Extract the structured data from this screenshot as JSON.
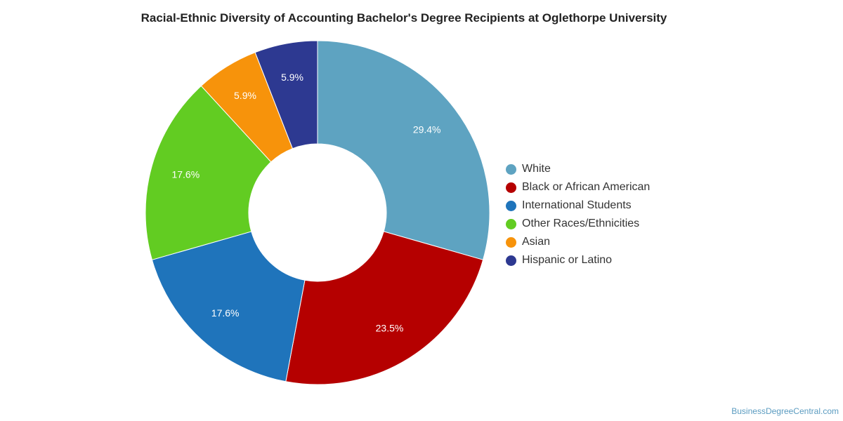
{
  "chart_data": {
    "type": "pie",
    "title": "Racial-Ethnic Diversity of Accounting Bachelor's Degree Recipients at Oglethorpe University",
    "legend_position": "right",
    "donut": true,
    "slices": [
      {
        "name": "White",
        "value": 29.4,
        "label": "29.4%",
        "color": "#5ea3c1"
      },
      {
        "name": "Black or African American",
        "value": 23.5,
        "label": "23.5%",
        "color": "#b50000"
      },
      {
        "name": "International Students",
        "value": 17.6,
        "label": "17.6%",
        "color": "#1f74bb"
      },
      {
        "name": "Other Races/Ethnicities",
        "value": 17.6,
        "label": "17.6%",
        "color": "#62cc22"
      },
      {
        "name": "Asian",
        "value": 5.9,
        "label": "5.9%",
        "color": "#f7930b"
      },
      {
        "name": "Hispanic or Latino",
        "value": 5.9,
        "label": "5.9%",
        "color": "#2d3991"
      }
    ]
  },
  "source_credit": "BusinessDegreeCentral.com"
}
